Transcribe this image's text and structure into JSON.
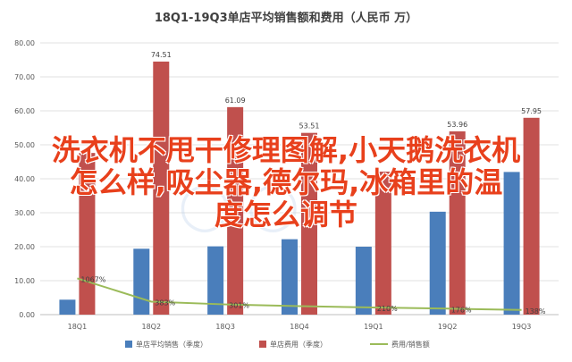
{
  "chart_data": {
    "type": "bar",
    "title": "18Q1-19Q3单店平均销售额和费用（人民币 万）",
    "categories": [
      "18Q1",
      "18Q2",
      "18Q3",
      "18Q4",
      "19Q1",
      "19Q2",
      "19Q3"
    ],
    "ylim": [
      0,
      80
    ],
    "yticks": [
      "0.00",
      "10.00",
      "20.00",
      "30.00",
      "40.00",
      "50.00",
      "60.00",
      "70.00",
      "80.00"
    ],
    "grid": true,
    "legend_position": "bottom",
    "series": [
      {
        "name": "单店平均销售（季度）",
        "type": "bar",
        "color": "#4a7ebb",
        "values": [
          4.4,
          19.4,
          20.1,
          22.2,
          20.0,
          30.3,
          42.0
        ],
        "labels": []
      },
      {
        "name": "单店费用（季度）",
        "type": "bar",
        "color": "#c0504d",
        "values": [
          47.6,
          74.51,
          61.09,
          53.51,
          42.1,
          53.96,
          57.95
        ],
        "labels": [
          "",
          "74.51",
          "61.09",
          "53.51",
          "",
          "53.96",
          "57.95"
        ]
      },
      {
        "name": "费用/销售额",
        "type": "line",
        "color": "#9bbb59",
        "values": [
          10.67,
          3.83,
          3.01,
          2.5,
          2.1,
          1.76,
          1.38
        ],
        "labels": [
          "1067%",
          "383%",
          "301%",
          "",
          "210%",
          "176%",
          "138%"
        ]
      }
    ]
  },
  "overlay": {
    "lines": [
      "洗衣机不甩干修理图解,小天鹅洗衣机",
      "怎么样,吸尘器,德尔玛,冰箱里的温",
      "度怎么调节"
    ]
  }
}
